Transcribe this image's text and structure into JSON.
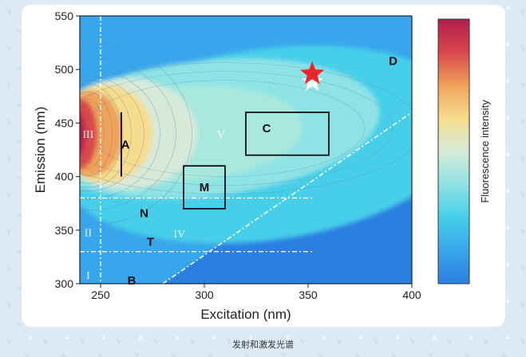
{
  "caption": "发射和激发光谱",
  "chart_data": {
    "type": "heatmap",
    "xlabel": "Excitation (nm)",
    "ylabel": "Emission (nm)",
    "colorbar_label": "Fluorescence intensity",
    "xlim": [
      240,
      400
    ],
    "ylim": [
      300,
      550
    ],
    "x_ticks": [
      250,
      300,
      350,
      400
    ],
    "y_ticks": [
      300,
      350,
      400,
      450,
      500,
      550
    ],
    "colorscale": [
      "#2b7fe0",
      "#38a6ec",
      "#46cfe9",
      "#8fe3e4",
      "#d7ead9",
      "#f6dd8e",
      "#f0a25a",
      "#d9474c",
      "#b31d4e"
    ],
    "peaks": [
      {
        "label": "A",
        "x": 262,
        "y": 430
      },
      {
        "label": "C",
        "x": 330,
        "y": 445
      },
      {
        "label": "M",
        "x": 300,
        "y": 390
      },
      {
        "label": "N",
        "x": 271,
        "y": 366
      },
      {
        "label": "T",
        "x": 274,
        "y": 339
      },
      {
        "label": "B",
        "x": 265,
        "y": 303
      },
      {
        "label": "D",
        "x": 391,
        "y": 508
      }
    ],
    "regions": [
      {
        "label": "I",
        "x": 244,
        "y": 308
      },
      {
        "label": "II",
        "x": 244,
        "y": 348
      },
      {
        "label": "III",
        "x": 244,
        "y": 440
      },
      {
        "label": "IV",
        "x": 288,
        "y": 347
      },
      {
        "label": "V",
        "x": 308,
        "y": 440
      }
    ],
    "boxes": [
      {
        "x0": 320,
        "x1": 360,
        "y0": 420,
        "y1": 460
      },
      {
        "x0": 290,
        "x1": 310,
        "y0": 370,
        "y1": 410
      }
    ],
    "line_A": {
      "x": 260,
      "y0": 400,
      "y1": 460
    },
    "star": {
      "x": 352,
      "y": 496
    },
    "dashed_h": [
      380,
      330
    ],
    "dashed_v": 250,
    "diagonal": [
      [
        280,
        300
      ],
      [
        400,
        460
      ]
    ]
  }
}
